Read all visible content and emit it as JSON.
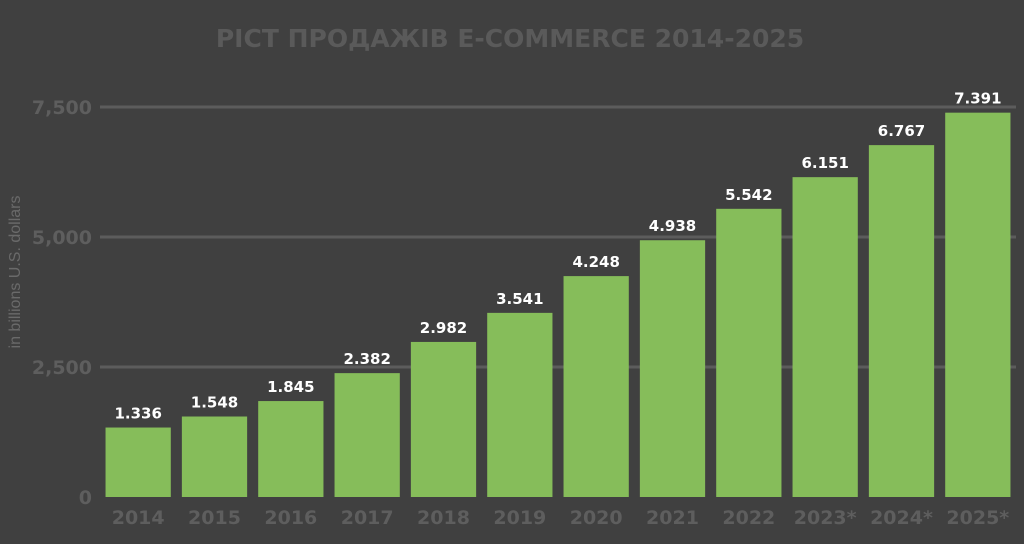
{
  "chart_data": {
    "type": "bar",
    "title": "PICT ПРОДАЖІВ E-COMMERCE 2014-2025",
    "ylabel": "in billions U.S. dollars",
    "xlabel": "",
    "categories": [
      "2014",
      "2015",
      "2016",
      "2017",
      "2018",
      "2019",
      "2020",
      "2021",
      "2022",
      "2023*",
      "2024*",
      "2025*"
    ],
    "values": [
      1336,
      1548,
      1845,
      2382,
      2982,
      3541,
      4248,
      4938,
      5542,
      6151,
      6767,
      7391
    ],
    "data_labels": [
      "1.336",
      "1.548",
      "1.845",
      "2.382",
      "2.982",
      "3.541",
      "4.248",
      "4.938",
      "5.542",
      "6.151",
      "6.767",
      "7.391"
    ],
    "yticks": [
      0,
      2500,
      5000,
      7500
    ],
    "ytick_labels": [
      "0",
      "2,500",
      "5,000",
      "7,500"
    ],
    "ylim": [
      0,
      7500
    ],
    "grid": true,
    "legend": "none",
    "colors": {
      "background": "#404040",
      "bar": "#86bd5a",
      "text_muted": "#5e5e5e",
      "data_label": "#ffffff",
      "grid": "#5c5c5c"
    }
  }
}
